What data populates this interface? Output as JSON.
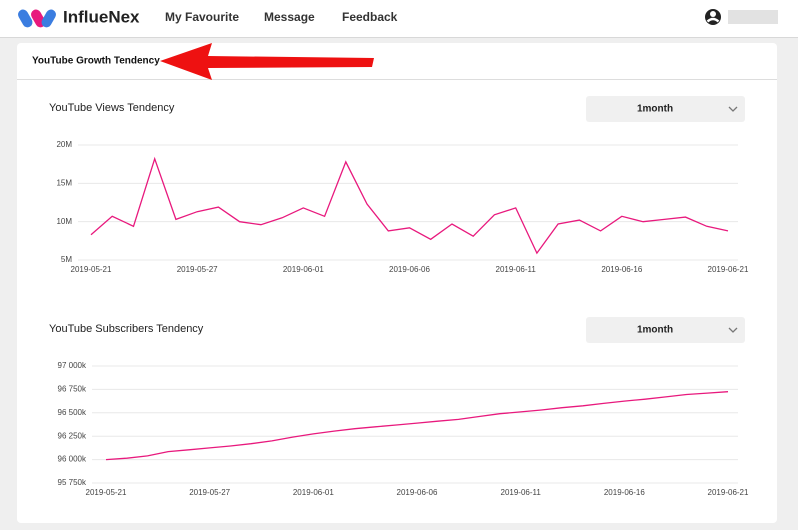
{
  "header": {
    "brand": "InflueNex",
    "nav": [
      "My Favourite",
      "Message",
      "Feedback"
    ]
  },
  "panel_title": "YouTube Growth Tendency",
  "chart_data": [
    {
      "type": "line",
      "title": "YouTube Views Tendency",
      "range_selector": "1month",
      "color": "#e8197d",
      "categories": [
        "2019-05-21",
        null,
        null,
        null,
        null,
        "2019-05-27",
        null,
        null,
        null,
        null,
        "2019-06-01",
        null,
        null,
        null,
        null,
        "2019-06-06",
        null,
        null,
        null,
        null,
        "2019-06-11",
        null,
        null,
        null,
        null,
        "2019-06-16",
        null,
        null,
        null,
        null,
        "2019-06-21"
      ],
      "values": [
        8.3,
        10.7,
        9.4,
        18.2,
        10.3,
        11.3,
        11.9,
        10.0,
        9.6,
        10.5,
        11.8,
        10.7,
        17.8,
        12.3,
        8.8,
        9.2,
        7.7,
        9.7,
        8.1,
        10.9,
        11.8,
        5.9,
        9.7,
        10.2,
        8.8,
        10.7,
        10.0,
        10.3,
        10.6,
        9.4,
        8.8
      ],
      "ylim": [
        5,
        20
      ],
      "yticks": [
        {
          "value": 5,
          "label": "5M"
        },
        {
          "value": 10,
          "label": "10M"
        },
        {
          "value": 15,
          "label": "15M"
        },
        {
          "value": 20,
          "label": "20M"
        }
      ],
      "grid": true
    },
    {
      "type": "line",
      "title": "YouTube Subscribers Tendency",
      "range_selector": "1month",
      "color": "#e8197d",
      "categories": [
        "2019-05-21",
        null,
        null,
        null,
        null,
        "2019-05-27",
        null,
        null,
        null,
        null,
        "2019-06-01",
        null,
        null,
        null,
        null,
        "2019-06-06",
        null,
        null,
        null,
        null,
        "2019-06-11",
        null,
        null,
        null,
        null,
        "2019-06-16",
        null,
        null,
        null,
        null,
        "2019-06-21"
      ],
      "values": [
        96000,
        96015,
        96040,
        96085,
        96105,
        96125,
        96145,
        96170,
        96200,
        96240,
        96275,
        96305,
        96330,
        96350,
        96370,
        96390,
        96410,
        96430,
        96460,
        96490,
        96510,
        96530,
        96555,
        96575,
        96600,
        96625,
        96645,
        96670,
        96695,
        96710,
        96725
      ],
      "ylim": [
        95750,
        97000
      ],
      "yticks": [
        {
          "value": 95750,
          "label": "95 750k"
        },
        {
          "value": 96000,
          "label": "96 000k"
        },
        {
          "value": 96250,
          "label": "96 250k"
        },
        {
          "value": 96500,
          "label": "96 500k"
        },
        {
          "value": 96750,
          "label": "96 750k"
        },
        {
          "value": 97000,
          "label": "97 000k"
        }
      ],
      "grid": true
    }
  ]
}
